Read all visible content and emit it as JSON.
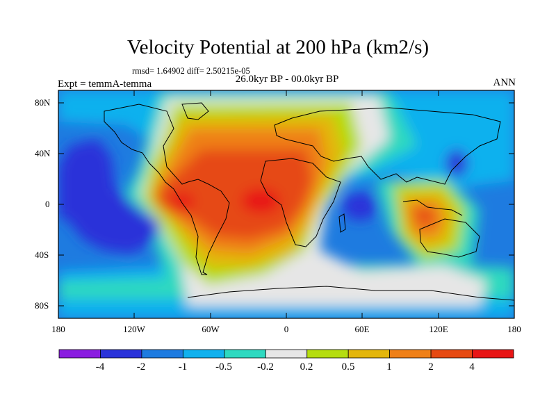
{
  "title": "Velocity Potential at 200 hPa (km2/s)",
  "stats": "rmsd= 1.64902 diff= 2.50215e-05",
  "left_label": "Expt = temmA-temma",
  "center_label": "26.0kyr BP - 00.0kyr BP",
  "right_label": "ANN",
  "axes": {
    "y_ticks": [
      "80N",
      "40N",
      "0",
      "40S",
      "80S"
    ],
    "x_ticks": [
      "180",
      "120W",
      "60W",
      "0",
      "60E",
      "120E",
      "180"
    ]
  },
  "colorbar": {
    "labels": [
      "-4",
      "-2",
      "-1",
      "-0.5",
      "-0.2",
      "0.2",
      "0.5",
      "1",
      "2",
      "4"
    ],
    "colors": [
      "#8a1de0",
      "#2a33d9",
      "#1e7be0",
      "#11b1ee",
      "#2ed9c0",
      "#e6e6e6",
      "#b5dd10",
      "#e3b60c",
      "#ef8018",
      "#e64a12",
      "#e81616"
    ]
  }
}
